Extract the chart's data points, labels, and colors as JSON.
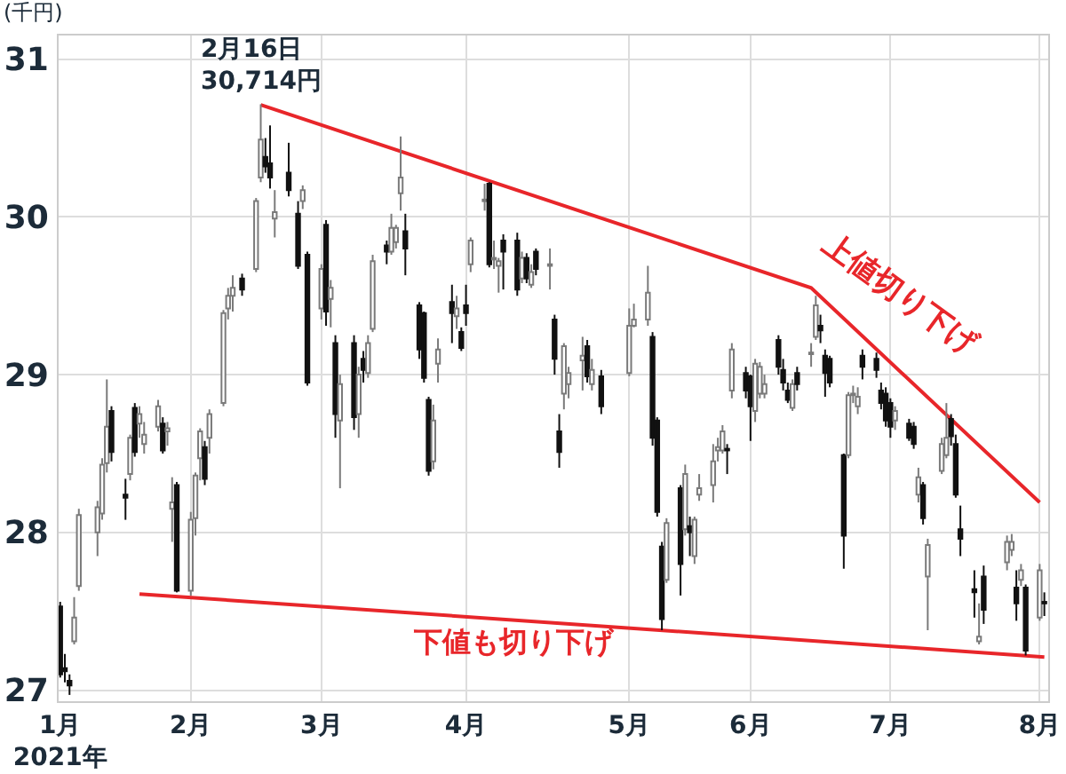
{
  "chart_data": {
    "type": "candlestick",
    "ylabel": "(千円)",
    "x": [
      "2021-01-04",
      "2021-01-05",
      "2021-01-06",
      "2021-01-07",
      "2021-01-08",
      "2021-01-12",
      "2021-01-13",
      "2021-01-14",
      "2021-01-15",
      "2021-01-18",
      "2021-01-19",
      "2021-01-20",
      "2021-01-21",
      "2021-01-22",
      "2021-01-25",
      "2021-01-26",
      "2021-01-27",
      "2021-01-28",
      "2021-01-29",
      "2021-02-01",
      "2021-02-02",
      "2021-02-03",
      "2021-02-04",
      "2021-02-05",
      "2021-02-08",
      "2021-02-09",
      "2021-02-10",
      "2021-02-12",
      "2021-02-15",
      "2021-02-16",
      "2021-02-17",
      "2021-02-18",
      "2021-02-19",
      "2021-02-22",
      "2021-02-24",
      "2021-02-25",
      "2021-02-26",
      "2021-03-01",
      "2021-03-02",
      "2021-03-03",
      "2021-03-04",
      "2021-03-05",
      "2021-03-08",
      "2021-03-09",
      "2021-03-10",
      "2021-03-11",
      "2021-03-12",
      "2021-03-15",
      "2021-03-16",
      "2021-03-17",
      "2021-03-18",
      "2021-03-19",
      "2021-03-22",
      "2021-03-23",
      "2021-03-24",
      "2021-03-25",
      "2021-03-26",
      "2021-03-29",
      "2021-03-30",
      "2021-03-31",
      "2021-04-01",
      "2021-04-02",
      "2021-04-05",
      "2021-04-06",
      "2021-04-07",
      "2021-04-08",
      "2021-04-09",
      "2021-04-12",
      "2021-04-13",
      "2021-04-14",
      "2021-04-15",
      "2021-04-16",
      "2021-04-19",
      "2021-04-20",
      "2021-04-21",
      "2021-04-22",
      "2021-04-23",
      "2021-04-26",
      "2021-04-27",
      "2021-04-28",
      "2021-04-30",
      "2021-05-06",
      "2021-05-07",
      "2021-05-10",
      "2021-05-11",
      "2021-05-12",
      "2021-05-13",
      "2021-05-14",
      "2021-05-17",
      "2021-05-18",
      "2021-05-19",
      "2021-05-20",
      "2021-05-21",
      "2021-05-24",
      "2021-05-25",
      "2021-05-26",
      "2021-05-27",
      "2021-05-28",
      "2021-05-31",
      "2021-06-01",
      "2021-06-02",
      "2021-06-03",
      "2021-06-04",
      "2021-06-07",
      "2021-06-08",
      "2021-06-09",
      "2021-06-10",
      "2021-06-11",
      "2021-06-14",
      "2021-06-15",
      "2021-06-16",
      "2021-06-17",
      "2021-06-18",
      "2021-06-21",
      "2021-06-22",
      "2021-06-23",
      "2021-06-24",
      "2021-06-25",
      "2021-06-28",
      "2021-06-29",
      "2021-06-30",
      "2021-07-01",
      "2021-07-02",
      "2021-07-05",
      "2021-07-06",
      "2021-07-07",
      "2021-07-08",
      "2021-07-09",
      "2021-07-12",
      "2021-07-13",
      "2021-07-14",
      "2021-07-15",
      "2021-07-16",
      "2021-07-19",
      "2021-07-20",
      "2021-07-21",
      "2021-07-26",
      "2021-07-27",
      "2021-07-28",
      "2021-07-29",
      "2021-07-30",
      "2021-08-02",
      "2021-08-03"
    ],
    "ohlc": [
      [
        27.53,
        27.56,
        27.08,
        27.1
      ],
      [
        27.14,
        27.23,
        27.05,
        27.12
      ],
      [
        27.06,
        27.1,
        26.97,
        27.03
      ],
      [
        27.31,
        27.59,
        27.29,
        27.46
      ],
      [
        27.66,
        28.15,
        27.63,
        28.11
      ],
      [
        28.0,
        28.2,
        27.85,
        28.16
      ],
      [
        28.12,
        28.47,
        28.08,
        28.43
      ],
      [
        28.44,
        28.97,
        28.38,
        28.67
      ],
      [
        28.77,
        28.8,
        28.45,
        28.51
      ],
      [
        28.24,
        28.34,
        28.08,
        28.22
      ],
      [
        28.37,
        28.62,
        28.33,
        28.6
      ],
      [
        28.79,
        28.82,
        28.48,
        28.51
      ],
      [
        28.69,
        28.8,
        28.6,
        28.75
      ],
      [
        28.56,
        28.7,
        28.5,
        28.62
      ],
      [
        28.67,
        28.84,
        28.64,
        28.8
      ],
      [
        28.69,
        28.73,
        28.5,
        28.52
      ],
      [
        28.64,
        28.7,
        28.55,
        28.66
      ],
      [
        28.15,
        28.35,
        27.94,
        28.19
      ],
      [
        28.3,
        28.32,
        27.62,
        27.63
      ],
      [
        27.63,
        28.13,
        27.6,
        28.08
      ],
      [
        28.09,
        28.38,
        27.98,
        28.36
      ],
      [
        28.47,
        28.66,
        28.33,
        28.64
      ],
      [
        28.54,
        28.58,
        28.3,
        28.34
      ],
      [
        28.6,
        28.78,
        28.5,
        28.75
      ],
      [
        28.82,
        29.41,
        28.8,
        29.39
      ],
      [
        29.42,
        29.55,
        29.35,
        29.5
      ],
      [
        29.5,
        29.63,
        29.4,
        29.55
      ],
      [
        29.61,
        29.64,
        29.5,
        29.54
      ],
      [
        29.67,
        30.12,
        29.65,
        30.1
      ],
      [
        30.25,
        30.714,
        30.22,
        30.49
      ],
      [
        30.38,
        30.5,
        30.28,
        30.32
      ],
      [
        30.34,
        30.58,
        30.18,
        30.25
      ],
      [
        29.99,
        30.17,
        29.87,
        30.03
      ],
      [
        30.28,
        30.47,
        30.13,
        30.17
      ],
      [
        30.02,
        30.1,
        29.67,
        29.69
      ],
      [
        30.1,
        30.2,
        30.05,
        30.17
      ],
      [
        29.76,
        29.78,
        28.93,
        28.95
      ],
      [
        29.42,
        29.7,
        29.35,
        29.67
      ],
      [
        29.95,
        29.98,
        29.31,
        29.4
      ],
      [
        29.48,
        29.6,
        29.3,
        29.55
      ],
      [
        29.2,
        29.25,
        28.6,
        28.75
      ],
      [
        28.71,
        29.0,
        28.28,
        28.94
      ],
      [
        29.2,
        29.25,
        28.65,
        28.73
      ],
      [
        28.75,
        29.05,
        28.6,
        29.0
      ],
      [
        29.1,
        29.15,
        28.95,
        29.03
      ],
      [
        29.01,
        29.25,
        28.98,
        29.2
      ],
      [
        29.29,
        29.76,
        29.27,
        29.72
      ],
      [
        29.82,
        29.85,
        29.7,
        29.78
      ],
      [
        29.78,
        30.02,
        29.76,
        29.93
      ],
      [
        29.84,
        29.95,
        29.8,
        29.93
      ],
      [
        30.15,
        30.51,
        30.04,
        30.25
      ],
      [
        29.91,
        30.02,
        29.63,
        29.8
      ],
      [
        29.44,
        29.46,
        29.1,
        29.16
      ],
      [
        29.39,
        29.4,
        28.95,
        28.98
      ],
      [
        28.84,
        28.86,
        28.36,
        28.39
      ],
      [
        28.45,
        28.81,
        28.4,
        28.71
      ],
      [
        29.07,
        29.23,
        28.95,
        29.16
      ],
      [
        29.46,
        29.57,
        29.2,
        29.39
      ],
      [
        29.37,
        29.5,
        29.29,
        29.42
      ],
      [
        29.27,
        29.3,
        29.15,
        29.17
      ],
      [
        29.44,
        29.57,
        29.31,
        29.39
      ],
      [
        29.7,
        29.87,
        29.65,
        29.85
      ],
      [
        30.1,
        30.21,
        30.04,
        30.11
      ],
      [
        30.21,
        30.22,
        29.68,
        29.7
      ],
      [
        29.73,
        29.85,
        29.67,
        29.74
      ],
      [
        29.69,
        29.74,
        29.52,
        29.72
      ],
      [
        29.85,
        29.89,
        29.54,
        29.78
      ],
      [
        29.85,
        29.9,
        29.5,
        29.54
      ],
      [
        29.61,
        29.78,
        29.58,
        29.74
      ],
      [
        29.74,
        29.77,
        29.58,
        29.61
      ],
      [
        29.57,
        29.7,
        29.55,
        29.65
      ],
      [
        29.78,
        29.8,
        29.63,
        29.67
      ],
      [
        29.69,
        29.8,
        29.54,
        29.7
      ],
      [
        29.35,
        29.38,
        29.0,
        29.1
      ],
      [
        28.64,
        28.75,
        28.41,
        28.51
      ],
      [
        28.88,
        29.2,
        28.78,
        29.18
      ],
      [
        28.94,
        29.05,
        28.85,
        29.01
      ],
      [
        29.09,
        29.24,
        28.9,
        29.12
      ],
      [
        29.18,
        29.22,
        28.95,
        28.99
      ],
      [
        28.94,
        29.1,
        28.9,
        29.03
      ],
      [
        28.99,
        29.03,
        28.75,
        28.8
      ],
      [
        29.01,
        29.42,
        28.99,
        29.31
      ],
      [
        29.31,
        29.45,
        29.3,
        29.35
      ],
      [
        29.35,
        29.69,
        29.31,
        29.52
      ],
      [
        29.24,
        29.27,
        28.55,
        28.6
      ],
      [
        28.71,
        28.73,
        28.1,
        28.13
      ],
      [
        27.91,
        27.94,
        27.38,
        27.45
      ],
      [
        27.7,
        28.09,
        27.68,
        28.06
      ],
      [
        28.28,
        28.3,
        27.6,
        27.8
      ],
      [
        28.02,
        28.43,
        27.98,
        28.37
      ],
      [
        28.04,
        28.1,
        27.85,
        28.0
      ],
      [
        27.85,
        28.1,
        27.8,
        28.08
      ],
      [
        28.24,
        28.37,
        28.2,
        28.28
      ],
      [
        28.3,
        28.56,
        28.19,
        28.45
      ],
      [
        28.52,
        28.6,
        28.45,
        28.54
      ],
      [
        28.52,
        28.68,
        28.5,
        28.64
      ],
      [
        28.53,
        28.56,
        28.37,
        28.52
      ],
      [
        28.9,
        29.2,
        28.85,
        29.16
      ],
      [
        29.01,
        29.05,
        28.85,
        28.9
      ],
      [
        28.99,
        29.0,
        28.58,
        28.8
      ],
      [
        28.77,
        29.1,
        28.7,
        29.07
      ],
      [
        28.88,
        29.08,
        28.85,
        29.05
      ],
      [
        28.88,
        29.0,
        28.85,
        28.94
      ],
      [
        29.22,
        29.25,
        29.0,
        29.05
      ],
      [
        29.03,
        29.1,
        28.9,
        28.95
      ],
      [
        28.9,
        28.95,
        28.82,
        28.84
      ],
      [
        28.79,
        28.97,
        28.77,
        28.94
      ],
      [
        29.01,
        29.05,
        28.9,
        28.94
      ],
      [
        29.13,
        29.2,
        29.05,
        29.14
      ],
      [
        29.24,
        29.5,
        29.22,
        29.44
      ],
      [
        29.31,
        29.38,
        29.2,
        29.28
      ],
      [
        29.12,
        29.16,
        28.86,
        29.01
      ],
      [
        29.1,
        29.12,
        28.92,
        28.95
      ],
      [
        28.49,
        28.5,
        27.77,
        27.98
      ],
      [
        28.49,
        28.89,
        28.47,
        28.87
      ],
      [
        28.87,
        28.93,
        28.82,
        28.88
      ],
      [
        28.8,
        28.92,
        28.75,
        28.86
      ],
      [
        29.12,
        29.16,
        28.97,
        29.05
      ],
      [
        29.1,
        29.14,
        28.98,
        29.03
      ],
      [
        28.9,
        28.95,
        28.78,
        28.82
      ],
      [
        28.88,
        28.92,
        28.67,
        28.71
      ],
      [
        28.82,
        28.85,
        28.6,
        28.67
      ],
      [
        28.71,
        28.8,
        28.65,
        28.77
      ],
      [
        28.69,
        28.72,
        28.58,
        28.6
      ],
      [
        28.67,
        28.7,
        28.53,
        28.56
      ],
      [
        28.24,
        28.41,
        28.19,
        28.35
      ],
      [
        28.3,
        28.32,
        28.05,
        28.09
      ],
      [
        27.72,
        27.96,
        27.38,
        27.92
      ],
      [
        28.39,
        28.6,
        28.37,
        28.56
      ],
      [
        28.49,
        28.82,
        28.47,
        28.6
      ],
      [
        28.72,
        28.75,
        28.55,
        28.61
      ],
      [
        28.56,
        28.62,
        28.22,
        28.24
      ],
      [
        28.02,
        28.17,
        27.85,
        27.96
      ],
      [
        27.64,
        27.76,
        27.46,
        27.62
      ],
      [
        27.31,
        27.55,
        27.29,
        27.34
      ],
      [
        27.72,
        27.79,
        27.42,
        27.51
      ],
      [
        27.81,
        27.98,
        27.76,
        27.94
      ],
      [
        27.89,
        27.99,
        27.85,
        27.94
      ],
      [
        27.65,
        27.76,
        27.44,
        27.55
      ],
      [
        27.7,
        27.8,
        27.66,
        27.76
      ],
      [
        27.65,
        27.67,
        27.22,
        27.25
      ],
      [
        27.46,
        27.8,
        27.44,
        27.76
      ],
      [
        27.56,
        27.62,
        27.47,
        27.55
      ]
    ],
    "series": [
      {
        "type": "line",
        "color": "#e8262a",
        "x": [
          "2021-02-16",
          "2021-06-14",
          "2021-08-02"
        ],
        "values": [
          30.71,
          29.55,
          28.19
        ]
      },
      {
        "type": "line",
        "color": "#e8262a",
        "x": [
          "2021-01-21",
          "2021-08-03"
        ],
        "values": [
          27.61,
          27.21
        ]
      }
    ],
    "annotations": [
      {
        "text": "2月16日\n30,714円",
        "x": "2021-02-16",
        "y": 30.714
      },
      "上値切り下げ",
      "下値も切り下げ"
    ],
    "xlim": [
      "2021-01-03T16:00",
      "2021-08-03T20:00"
    ],
    "xticks": [
      {
        "value": "2021-01-04",
        "label": "1月\n2021年"
      },
      {
        "value": "2021-02-01",
        "label": "2月"
      },
      {
        "value": "2021-03-01",
        "label": "3月"
      },
      {
        "value": "2021-04-01",
        "label": "4月"
      },
      {
        "value": "2021-05-06",
        "label": "5月"
      },
      {
        "value": "2021-06-01",
        "label": "6月"
      },
      {
        "value": "2021-07-01",
        "label": "7月"
      },
      {
        "value": "2021-08-02",
        "label": "8月"
      }
    ],
    "ylim": [
      26.93,
      31.15
    ],
    "yticks": [
      27,
      28,
      29,
      30,
      31
    ],
    "grid": true
  }
}
